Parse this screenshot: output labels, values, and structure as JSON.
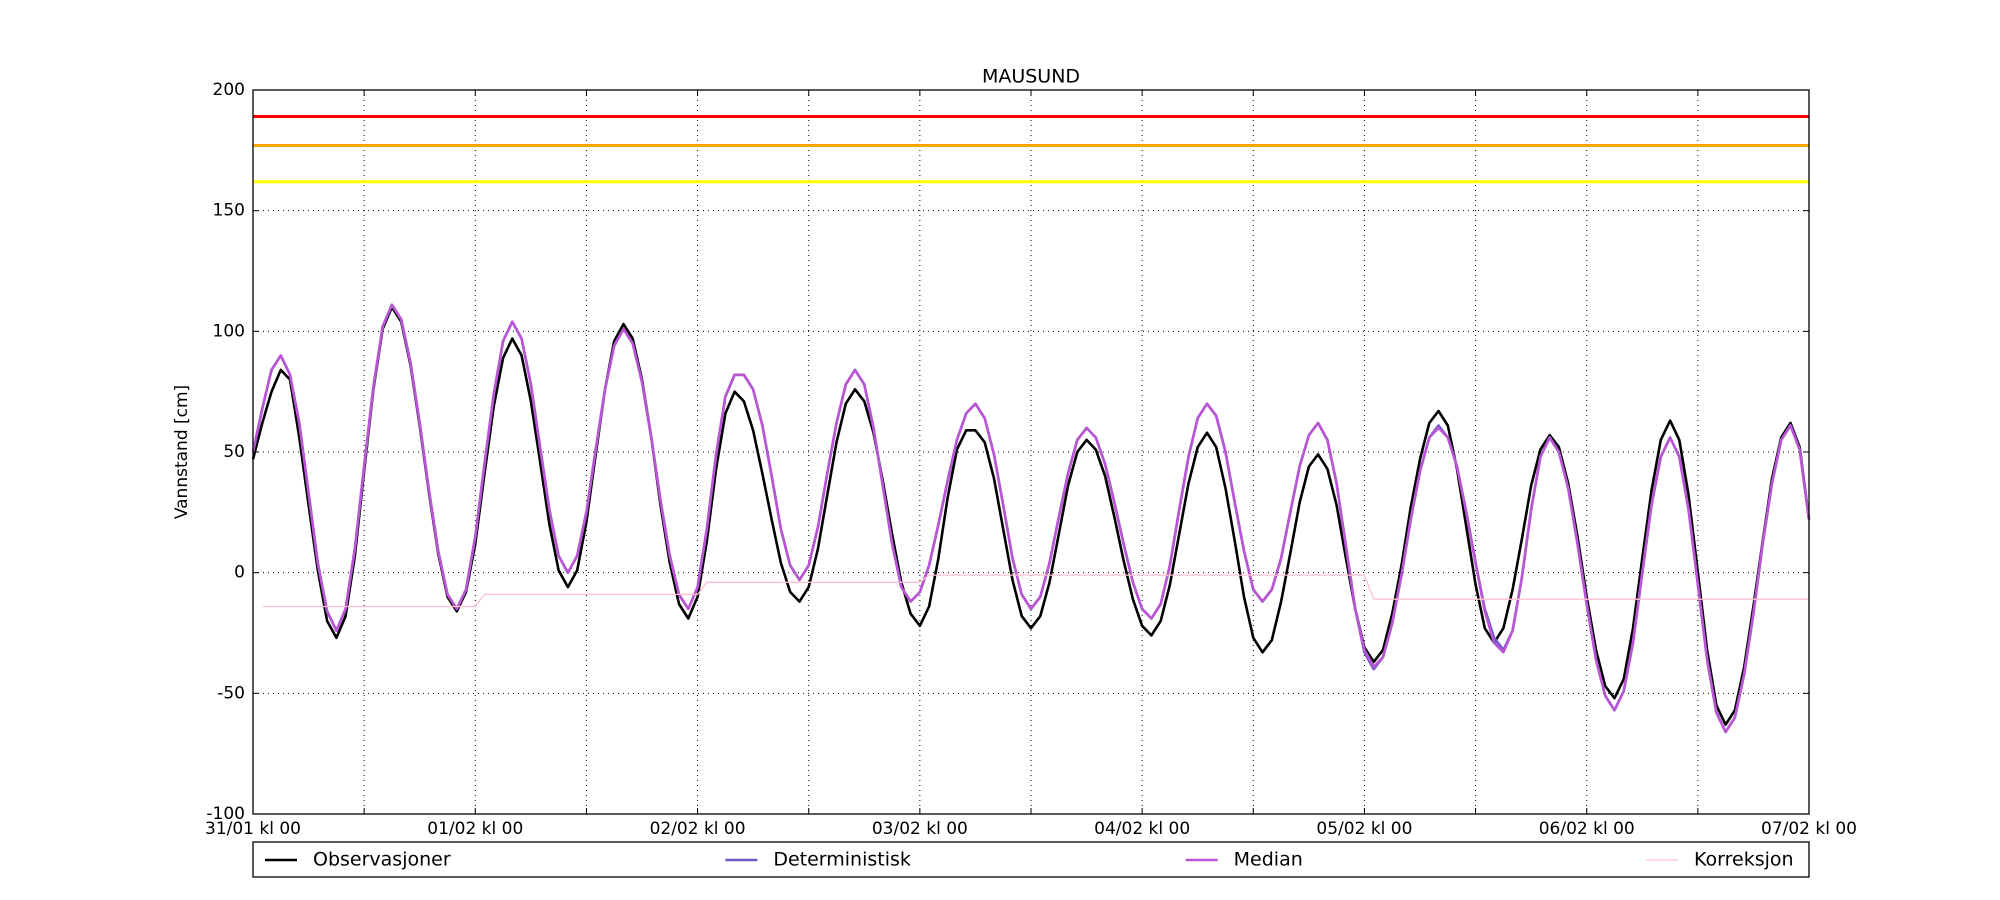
{
  "chart_data": {
    "type": "line",
    "title": "MAUSUND",
    "y_label": "Vannstand [cm]",
    "xlim": [
      0,
      168
    ],
    "xticks": [
      {
        "value": 0,
        "label": "31/01 kl 00"
      },
      {
        "value": 24,
        "label": "01/02 kl 00"
      },
      {
        "value": 48,
        "label": "02/02 kl 00"
      },
      {
        "value": 72,
        "label": "03/02 kl 00"
      },
      {
        "value": 96,
        "label": "04/02 kl 00"
      },
      {
        "value": 120,
        "label": "05/02 kl 00"
      },
      {
        "value": 144,
        "label": "06/02 kl 00"
      },
      {
        "value": 168,
        "label": "07/02 kl 00"
      }
    ],
    "xminor": [
      12,
      36,
      60,
      84,
      108,
      132,
      156
    ],
    "ylim": [
      -100,
      200
    ],
    "yticks": [
      -100,
      -50,
      0,
      50,
      100,
      150,
      200
    ],
    "grid": true,
    "legend": "below",
    "hlines": [
      {
        "value": 189,
        "color": "#ff0000"
      },
      {
        "value": 177,
        "color": "#ffa500"
      },
      {
        "value": 162,
        "color": "#ffff00"
      }
    ],
    "x": [
      0,
      1,
      2,
      3,
      4,
      5,
      6,
      7,
      8,
      9,
      10,
      11,
      12,
      13,
      14,
      15,
      16,
      17,
      18,
      19,
      20,
      21,
      22,
      23,
      24,
      25,
      26,
      27,
      28,
      29,
      30,
      31,
      32,
      33,
      34,
      35,
      36,
      37,
      38,
      39,
      40,
      41,
      42,
      43,
      44,
      45,
      46,
      47,
      48,
      49,
      50,
      51,
      52,
      53,
      54,
      55,
      56,
      57,
      58,
      59,
      60,
      61,
      62,
      63,
      64,
      65,
      66,
      67,
      68,
      69,
      70,
      71,
      72,
      73,
      74,
      75,
      76,
      77,
      78,
      79,
      80,
      81,
      82,
      83,
      84,
      85,
      86,
      87,
      88,
      89,
      90,
      91,
      92,
      93,
      94,
      95,
      96,
      97,
      98,
      99,
      100,
      101,
      102,
      103,
      104,
      105,
      106,
      107,
      108,
      109,
      110,
      111,
      112,
      113,
      114,
      115,
      116,
      117,
      118,
      119,
      120,
      121,
      122,
      123,
      124,
      125,
      126,
      127,
      128,
      129,
      130,
      131,
      132,
      133,
      134,
      135,
      136,
      137,
      138,
      139,
      140,
      141,
      142,
      143,
      144,
      145,
      146,
      147,
      148,
      149,
      150,
      151,
      152,
      153,
      154,
      155,
      156,
      157,
      158,
      159,
      160,
      161,
      162,
      163,
      164,
      165,
      166,
      167,
      168
    ],
    "series": [
      {
        "name": "Observasjoner",
        "color": "#000000",
        "values": [
          47,
          62,
          75,
          84,
          80,
          56,
          28,
          1,
          -20,
          -27,
          -18,
          7,
          42,
          76,
          101,
          110,
          104,
          86,
          61,
          33,
          8,
          -10,
          -16,
          -8,
          12,
          41,
          69,
          89,
          97,
          90,
          71,
          46,
          20,
          1,
          -6,
          1,
          21,
          49,
          76,
          96,
          103,
          97,
          80,
          56,
          28,
          4,
          -13,
          -19,
          -10,
          13,
          43,
          66,
          75,
          71,
          59,
          41,
          22,
          4,
          -8,
          -12,
          -6,
          10,
          32,
          54,
          70,
          76,
          71,
          58,
          38,
          16,
          -4,
          -17,
          -22,
          -14,
          6,
          31,
          51,
          59,
          59,
          54,
          39,
          18,
          -3,
          -18,
          -23,
          -18,
          -4,
          16,
          36,
          50,
          55,
          51,
          40,
          23,
          5,
          -11,
          -22,
          -26,
          -20,
          -5,
          16,
          37,
          52,
          58,
          52,
          35,
          13,
          -10,
          -27,
          -33,
          -28,
          -12,
          8,
          29,
          44,
          49,
          43,
          28,
          6,
          -15,
          -31,
          -37,
          -32,
          -17,
          3,
          27,
          47,
          62,
          67,
          61,
          43,
          19,
          -5,
          -23,
          -29,
          -23,
          -7,
          14,
          36,
          51,
          57,
          52,
          37,
          15,
          -10,
          -32,
          -47,
          -52,
          -44,
          -23,
          6,
          34,
          55,
          63,
          55,
          32,
          0,
          -32,
          -55,
          -63,
          -57,
          -39,
          -14,
          13,
          39,
          56,
          62,
          52,
          22
        ]
      },
      {
        "name": "Deterministisk",
        "color": "#6a5acd",
        "values": [
          50,
          68,
          84,
          90,
          82,
          62,
          33,
          4,
          -16,
          -24,
          -15,
          10,
          44,
          77,
          102,
          111,
          105,
          87,
          62,
          34,
          9,
          -9,
          -15,
          -7,
          15,
          45,
          74,
          96,
          104,
          97,
          78,
          52,
          26,
          7,
          0,
          7,
          25,
          51,
          76,
          94,
          101,
          95,
          79,
          56,
          30,
          7,
          -9,
          -15,
          -6,
          18,
          49,
          73,
          82,
          82,
          76,
          61,
          40,
          18,
          3,
          -3,
          3,
          19,
          41,
          62,
          78,
          84,
          78,
          60,
          36,
          12,
          -6,
          -12,
          -8,
          3,
          20,
          38,
          55,
          66,
          70,
          64,
          49,
          28,
          6,
          -9,
          -15,
          -10,
          4,
          23,
          41,
          55,
          60,
          56,
          45,
          29,
          12,
          -4,
          -15,
          -19,
          -13,
          3,
          26,
          48,
          64,
          70,
          65,
          50,
          29,
          9,
          -7,
          -12,
          -7,
          6,
          25,
          44,
          57,
          62,
          55,
          37,
          11,
          -15,
          -33,
          -40,
          -35,
          -21,
          -1,
          22,
          42,
          56,
          61,
          56,
          44,
          25,
          4,
          -15,
          -27,
          -32,
          -24,
          -2,
          26,
          48,
          56,
          50,
          35,
          12,
          -13,
          -36,
          -51,
          -57,
          -49,
          -29,
          0,
          28,
          48,
          56,
          48,
          26,
          -5,
          -36,
          -58,
          -66,
          -60,
          -42,
          -17,
          12,
          37,
          55,
          61,
          51,
          22
        ]
      },
      {
        "name": "Median",
        "color": "#ba55d3",
        "values": [
          50,
          68,
          84,
          90,
          82,
          62,
          33,
          4,
          -16,
          -24,
          -15,
          10,
          44,
          77,
          102,
          111,
          105,
          87,
          62,
          34,
          9,
          -9,
          -15,
          -7,
          15,
          45,
          74,
          96,
          104,
          97,
          78,
          52,
          26,
          7,
          0,
          7,
          25,
          51,
          76,
          94,
          101,
          95,
          79,
          56,
          30,
          7,
          -9,
          -15,
          -6,
          18,
          49,
          73,
          82,
          82,
          76,
          61,
          40,
          18,
          3,
          -3,
          3,
          19,
          41,
          62,
          78,
          84,
          78,
          60,
          36,
          12,
          -6,
          -12,
          -8,
          3,
          20,
          38,
          55,
          66,
          70,
          64,
          49,
          28,
          6,
          -9,
          -15,
          -10,
          4,
          23,
          41,
          55,
          60,
          56,
          45,
          29,
          12,
          -4,
          -15,
          -19,
          -13,
          3,
          26,
          48,
          64,
          70,
          65,
          50,
          29,
          9,
          -7,
          -12,
          -7,
          6,
          25,
          44,
          57,
          62,
          55,
          37,
          11,
          -15,
          -32,
          -39,
          -35,
          -21,
          -1,
          22,
          42,
          56,
          60,
          56,
          44,
          25,
          4,
          -16,
          -29,
          -33,
          -24,
          -2,
          26,
          48,
          56,
          50,
          35,
          12,
          -13,
          -36,
          -51,
          -57,
          -49,
          -29,
          0,
          28,
          48,
          56,
          48,
          26,
          -5,
          -36,
          -58,
          -66,
          -60,
          -42,
          -17,
          12,
          37,
          55,
          61,
          51,
          22
        ]
      },
      {
        "name": "Korreksjon",
        "color": "#ffc0cb",
        "x": [
          1,
          24,
          25,
          48,
          49,
          72,
          73,
          120,
          121,
          168
        ],
        "values": [
          -14,
          -14,
          -9,
          -9,
          -4,
          -4,
          -1,
          -1,
          -11,
          -11
        ]
      }
    ]
  }
}
